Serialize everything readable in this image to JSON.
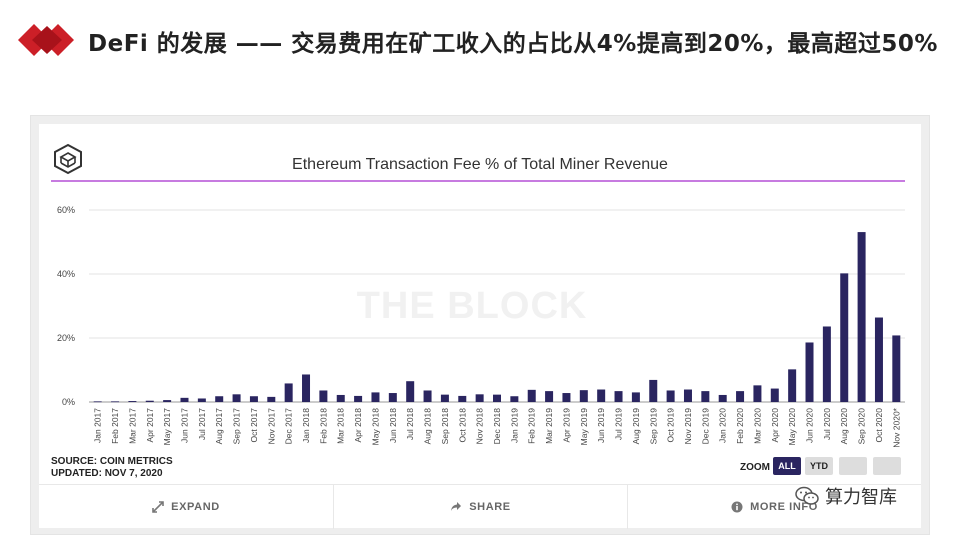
{
  "slide": {
    "title": "DeFi 的发展 —— 交易费用在矿工收入的占比从4%提高到20%，最高超过50%"
  },
  "chart": {
    "title": "Ethereum Transaction Fee % of Total Miner Revenue",
    "watermark": "THE BLOCK",
    "source_line1": "SOURCE: COIN METRICS",
    "source_line2": "UPDATED: NOV 7, 2020",
    "zoom_label": "ZOOM",
    "zoom_all": "ALL",
    "zoom_ytd": "YTD"
  },
  "footer": {
    "expand": "EXPAND",
    "share": "SHARE",
    "more": "MORE INFO"
  },
  "account_watermark": "算力智库",
  "colors": {
    "bar": "#2a2560",
    "title_rule": "#c77be0",
    "logo_red": "#cc1f27"
  },
  "chart_data": {
    "type": "bar",
    "title": "Ethereum Transaction Fee % of Total Miner Revenue",
    "xlabel": "",
    "ylabel": "",
    "ylim": [
      0,
      60
    ],
    "yticks": [
      0,
      20,
      40,
      60
    ],
    "ytick_labels": [
      "0%",
      "20%",
      "40%",
      "60%"
    ],
    "grid": true,
    "categories": [
      "Jan 2017",
      "Feb 2017",
      "Mar 2017",
      "Apr 2017",
      "May 2017",
      "Jun 2017",
      "Jul 2017",
      "Aug 2017",
      "Sep 2017",
      "Oct 2017",
      "Nov 2017",
      "Dec 2017",
      "Jan 2018",
      "Feb 2018",
      "Mar 2018",
      "Apr 2018",
      "May 2018",
      "Jun 2018",
      "Jul 2018",
      "Aug 2018",
      "Sep 2018",
      "Oct 2018",
      "Nov 2018",
      "Dec 2018",
      "Jan 2019",
      "Feb 2019",
      "Mar 2019",
      "Apr 2019",
      "May 2019",
      "Jun 2019",
      "Jul 2019",
      "Aug 2019",
      "Sep 2019",
      "Oct 2019",
      "Nov 2019",
      "Dec 2019",
      "Jan 2020",
      "Feb 2020",
      "Mar 2020",
      "Apr 2020",
      "May 2020",
      "Jun 2020",
      "Jul 2020",
      "Aug 2020",
      "Sep 2020",
      "Oct 2020",
      "Nov 2020*"
    ],
    "values": [
      0.2,
      0.2,
      0.3,
      0.4,
      0.6,
      1.3,
      1.1,
      1.8,
      2.4,
      1.8,
      1.6,
      5.8,
      8.6,
      3.6,
      2.2,
      1.9,
      3.0,
      2.8,
      6.5,
      3.6,
      2.3,
      1.9,
      2.4,
      2.3,
      1.8,
      3.8,
      3.4,
      2.8,
      3.7,
      3.9,
      3.4,
      3.0,
      6.9,
      3.6,
      3.9,
      3.4,
      2.2,
      3.4,
      5.2,
      4.2,
      10.2,
      18.6,
      23.6,
      40.2,
      53.1,
      26.4,
      20.8
    ]
  }
}
